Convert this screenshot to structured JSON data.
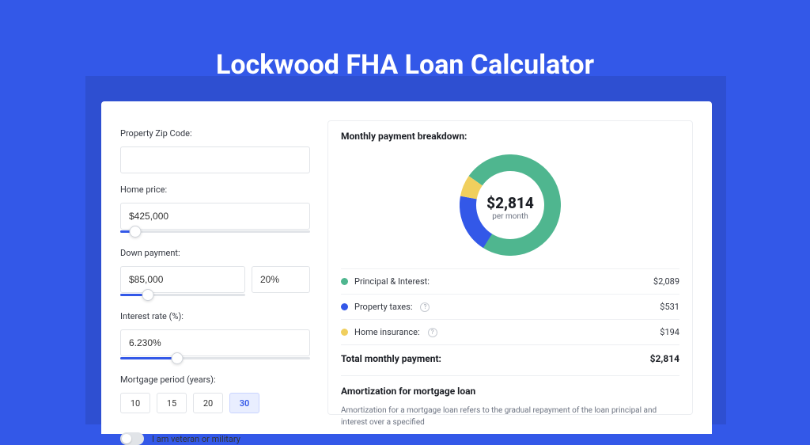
{
  "page": {
    "title": "Lockwood FHA Loan Calculator",
    "background_color": "#3358e8",
    "backdrop_color": "#2e4fd1",
    "card_bg": "#ffffff"
  },
  "form": {
    "zip": {
      "label": "Property Zip Code:",
      "value": ""
    },
    "home_price": {
      "label": "Home price:",
      "value": "$425,000",
      "slider_pct": 8
    },
    "down_payment": {
      "label": "Down payment:",
      "amount": "$85,000",
      "percent": "20%",
      "slider_pct": 22
    },
    "interest_rate": {
      "label": "Interest rate (%):",
      "value": "6.230%",
      "slider_pct": 30
    },
    "period": {
      "label": "Mortgage period (years):",
      "options": [
        "10",
        "15",
        "20",
        "30"
      ],
      "selected_index": 3
    },
    "veteran": {
      "label": "I am veteran or military",
      "checked": false
    }
  },
  "breakdown": {
    "title": "Monthly payment breakdown:",
    "center_amount": "$2,814",
    "center_sub": "per month",
    "donut": {
      "type": "donut",
      "size": 128,
      "thickness": 21,
      "background": "#ffffff",
      "slices": [
        {
          "key": "principal_interest",
          "value": 2089,
          "color": "#4fb68f"
        },
        {
          "key": "property_taxes",
          "value": 531,
          "color": "#3358e8"
        },
        {
          "key": "home_insurance",
          "value": 194,
          "color": "#f0cf5e"
        }
      ],
      "start_angle_deg": -55
    },
    "rows": [
      {
        "label": "Principal & Interest:",
        "value": "$2,089",
        "color": "#4fb68f",
        "info": false
      },
      {
        "label": "Property taxes:",
        "value": "$531",
        "color": "#3358e8",
        "info": true
      },
      {
        "label": "Home insurance:",
        "value": "$194",
        "color": "#f0cf5e",
        "info": true
      }
    ],
    "total": {
      "label": "Total monthly payment:",
      "value": "$2,814"
    }
  },
  "amortization": {
    "title": "Amortization for mortgage loan",
    "text": "Amortization for a mortgage loan refers to the gradual repayment of the loan principal and interest over a specified"
  }
}
